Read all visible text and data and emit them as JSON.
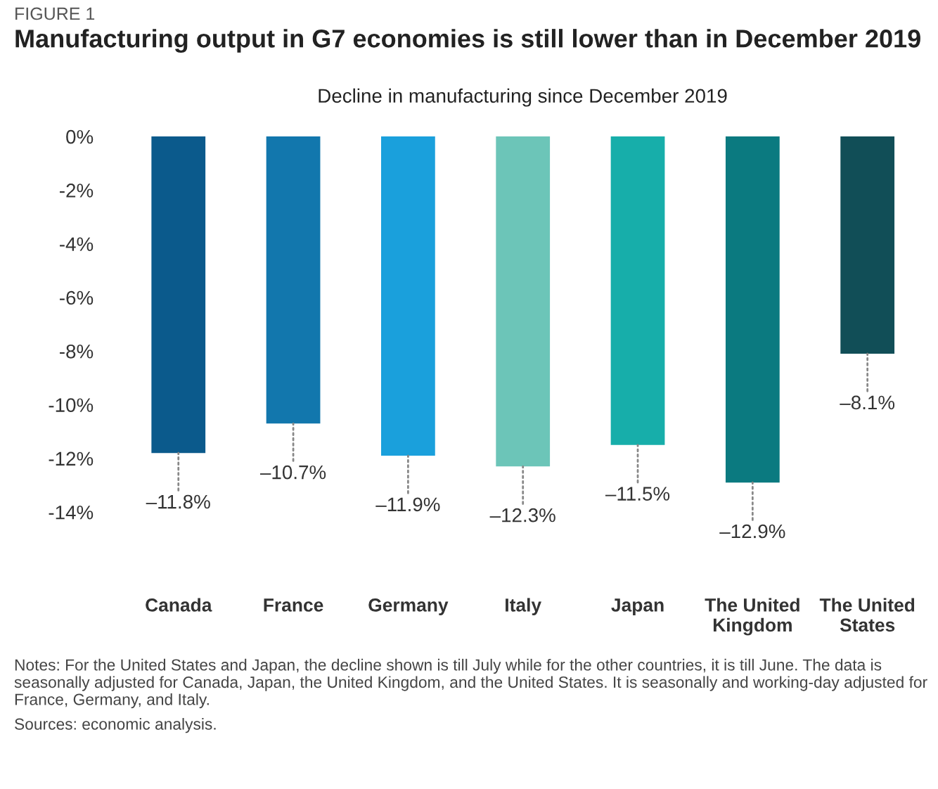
{
  "chart_data": {
    "type": "bar",
    "title": "Manufacturing output in G7 economies is still lower than in December 2019",
    "subtitle": "Decline in manufacturing since December 2019",
    "annotations": [
      "FIGURE 1",
      "Notes: For the United States and Japan, the decline shown is till July while for the other countries, it is till June. The data is seasonally adjusted for Canada, Japan, the United Kingdom, and the United States. It is seasonally and working-day adjusted for France, Germany, and Italy.",
      "Sources: economic analysis."
    ],
    "categories": [
      "Canada",
      "France",
      "Germany",
      "Italy",
      "Japan",
      "The United Kingdom",
      "The United States"
    ],
    "values": [
      -11.8,
      -10.7,
      -11.9,
      -12.3,
      -11.5,
      -12.9,
      -8.1
    ],
    "value_labels": [
      "–11.8%",
      "–10.7%",
      "–11.9%",
      "–12.3%",
      "–11.5%",
      "–12.9%",
      "–8.1%"
    ],
    "colors": [
      "#0b5a8c",
      "#1277ad",
      "#1aa0dc",
      "#6cc5b8",
      "#17aeaa",
      "#0b7a80",
      "#114e57"
    ],
    "ylim": [
      -14,
      0
    ],
    "yticks": [
      {
        "value": 0,
        "label": "0%"
      },
      {
        "value": -2,
        "label": "-2%"
      },
      {
        "value": -4,
        "label": "-4%"
      },
      {
        "value": -6,
        "label": "-6%"
      },
      {
        "value": -8,
        "label": "-8%"
      },
      {
        "value": -10,
        "label": "-10%"
      },
      {
        "value": -12,
        "label": "-12%"
      },
      {
        "value": -14,
        "label": "-14%"
      }
    ],
    "grid": false,
    "legend": false
  }
}
